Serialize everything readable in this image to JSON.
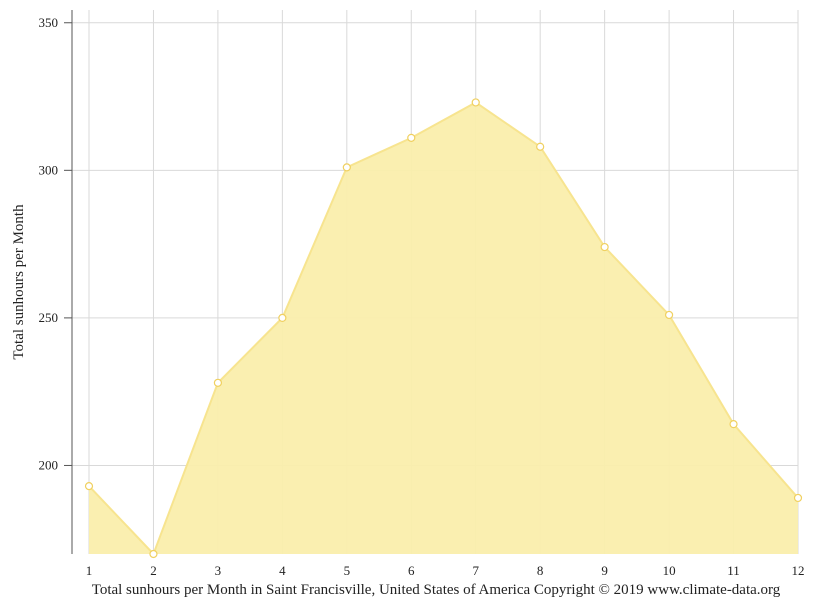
{
  "chart_data": {
    "type": "area",
    "x": [
      1,
      2,
      3,
      4,
      5,
      6,
      7,
      8,
      9,
      10,
      11,
      12
    ],
    "x_tick_labels": [
      "1",
      "2",
      "3",
      "4",
      "5",
      "6",
      "7",
      "8",
      "9",
      "10",
      "11",
      "12"
    ],
    "values": [
      193,
      170,
      228,
      250,
      301,
      311,
      323,
      308,
      274,
      251,
      214,
      189
    ],
    "ylabel": "Total sunhours per Month",
    "ylim": [
      170,
      355
    ],
    "y_ticks": [
      200,
      250,
      300,
      350
    ],
    "y_tick_labels": [
      "200",
      "250",
      "300",
      "350"
    ],
    "grid": true,
    "colors": {
      "fill": "#faeeac",
      "line": "#f7e48f",
      "marker_fill": "#ffffff",
      "marker_stroke": "#f0d060",
      "grid": "#d9d9d9",
      "axis": "#555555"
    }
  },
  "caption": "Total sunhours per Month in Saint Francisville, United States of America Copyright © 2019 www.climate-data.org"
}
